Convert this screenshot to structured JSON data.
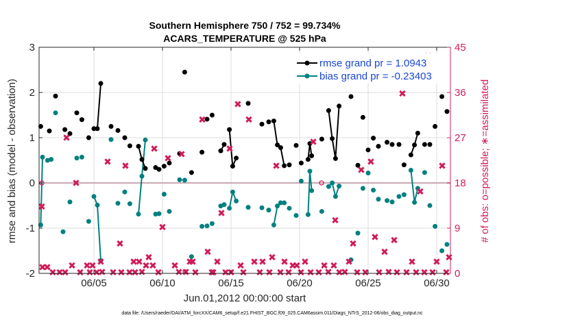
{
  "title_line1": "Southern Hemisphere 750 / 752 = 99.734%",
  "title_line2": "ACARS_TEMPERATURE @ 525 hPa",
  "xlabel": "Jun.01,2012 00:00:00 start",
  "ylabel_left": "rmse and bias (model - observation)",
  "ylabel_right": "# of obs: o=possible; ∗=assimilated",
  "footer": "data file: /Users/raeder/DAI/ATM_forcXX/CAM6_setup/f.e21.FHIST_BGC.f09_025.CAM6assim.011/Diags_NTrS_2012-06/obs_diag_output.nc",
  "colors": {
    "rmse": "#000000",
    "bias": "#008080",
    "obs": "#d01c58",
    "zero": "#c8a8b0",
    "grid": "#dcdcdc",
    "legend_text": "#1a46d6"
  },
  "chart_data": {
    "type": "line",
    "x_axis": {
      "unit": "day of June 2012",
      "range": [
        1,
        31
      ],
      "ticks": [
        5,
        10,
        15,
        20,
        25,
        30
      ],
      "tick_labels": [
        "06/05",
        "06/10",
        "06/15",
        "06/20",
        "06/25",
        "06/30"
      ]
    },
    "y_left": {
      "range": [
        -2,
        3
      ],
      "ticks": [
        -2,
        -1,
        0,
        1,
        2,
        3
      ],
      "tick_labels": [
        "-2",
        "-1",
        "0",
        "1",
        "2",
        "3"
      ]
    },
    "y_right": {
      "range": [
        0,
        45
      ],
      "ticks": [
        0,
        9,
        18,
        27,
        36,
        45
      ],
      "tick_labels": [
        "0",
        "9",
        "18",
        "27",
        "36",
        "45"
      ]
    },
    "grid": true,
    "legend_position": "top-right",
    "series": [
      {
        "name": "rmse grand pr = 1.0943",
        "style": "line-dot",
        "x": [
          1.12,
          1.75,
          2.2,
          2.88,
          3.25,
          3.75,
          4.12,
          4.62,
          5.0,
          5.25,
          5.5,
          6.25,
          6.75,
          7.25,
          7.62,
          8.25,
          8.5,
          8.75,
          9.5,
          9.75,
          10.12,
          10.5,
          11.25,
          11.62,
          12.12,
          12.88,
          13.25,
          13.62,
          14.25,
          14.5,
          14.88,
          15.12,
          15.38,
          16.25,
          17.25,
          17.75,
          18.12,
          18.38,
          18.62,
          18.88,
          19.25,
          19.75,
          20.12,
          20.62,
          20.75,
          20.88,
          21.62,
          22.12,
          22.38,
          22.62,
          22.88,
          23.75,
          24.25,
          24.62,
          25.0,
          25.38,
          25.75,
          26.38,
          26.75,
          27.25,
          27.62,
          28.12,
          28.38,
          28.62,
          29.12,
          29.5,
          29.88,
          30.38,
          30.75
        ],
        "values": [
          1.25,
          1.15,
          1.92,
          1.18,
          1.09,
          1.55,
          1.4,
          1.0,
          1.2,
          1.2,
          2.2,
          1.25,
          1.16,
          1.0,
          0.82,
          0.81,
          0.52,
          0.32,
          0.34,
          0.3,
          0.37,
          0.44,
          0.65,
          2.45,
          0.23,
          0.68,
          1.41,
          1.5,
          0.71,
          0.85,
          1.18,
          0.37,
          0.55,
          1.76,
          1.3,
          1.35,
          1.37,
          0.84,
          0.78,
          0.38,
          0.4,
          0.83,
          0.44,
          0.52,
          0.87,
          0.6,
          0.97,
          1.6,
          0.98,
          0.54,
          1.7,
          1.91,
          0.39,
          1.45,
          0.73,
          0.99,
          0.81,
          0.9,
          0.85,
          0.85,
          0.4,
          0.62,
          0.84,
          1.1,
          0.85,
          0.85,
          1.25,
          1.91,
          1.58
        ]
      },
      {
        "name": "bias grand pr = -0.23403",
        "style": "line-dot",
        "x": [
          1.12,
          1.25,
          1.62,
          1.88,
          2.2,
          2.75,
          3.25,
          3.75,
          4.12,
          4.62,
          5.0,
          5.25,
          5.5,
          6.25,
          6.75,
          7.25,
          7.62,
          8.25,
          8.5,
          8.75,
          9.5,
          9.75,
          10.12,
          10.5,
          11.25,
          11.62,
          12.12,
          12.88,
          13.25,
          13.62,
          14.25,
          14.5,
          14.88,
          15.12,
          15.38,
          16.25,
          17.25,
          17.75,
          18.12,
          18.38,
          18.62,
          18.88,
          19.25,
          19.75,
          20.12,
          20.62,
          20.75,
          20.88,
          21.62,
          22.12,
          22.38,
          22.62,
          22.88,
          23.75,
          24.25,
          24.62,
          25.0,
          25.38,
          25.75,
          26.38,
          26.75,
          27.25,
          27.62,
          28.12,
          28.38,
          28.62,
          29.12,
          29.5,
          29.88,
          30.38,
          30.75
        ],
        "values": [
          -0.93,
          0.57,
          0.5,
          0.52,
          1.55,
          -1.08,
          -0.42,
          0.55,
          0.57,
          -0.85,
          -0.3,
          -0.49,
          -1.72,
          0.96,
          -0.45,
          -0.2,
          -0.46,
          -0.69,
          0.15,
          0.95,
          -0.69,
          -0.68,
          -0.25,
          -0.63,
          0.07,
          0.06,
          -1.63,
          -0.96,
          -0.95,
          -0.9,
          -0.51,
          -0.48,
          -0.56,
          -0.2,
          -0.4,
          -0.54,
          -0.55,
          -0.6,
          -0.93,
          -0.51,
          -0.44,
          -0.44,
          -0.56,
          -0.72,
          0.04,
          -0.7,
          0.26,
          -0.17,
          -0.63,
          -0.08,
          0.0,
          -0.3,
          -0.07,
          -1.7,
          -1.11,
          -0.12,
          0.22,
          -0.16,
          -0.36,
          -0.39,
          -0.42,
          -0.3,
          -0.26,
          0.28,
          -0.43,
          -0.12,
          0.23,
          -0.5,
          -0.96,
          -1.5,
          -1.36
        ]
      },
      {
        "name": "# of obs possible",
        "style": "marker-o",
        "x": [
          1.2,
          11.65,
          21.6
        ],
        "values": [
          18,
          0.3,
          18
        ]
      },
      {
        "name": "# of obs assimilated",
        "style": "marker-x",
        "x": [
          1.2,
          1.25,
          1.6,
          2.0,
          2.5,
          2.9,
          3.0,
          3.4,
          3.7,
          4.0,
          4.5,
          4.7,
          4.9,
          5.2,
          5.5,
          5.6,
          6.0,
          6.4,
          6.9,
          7.0,
          7.3,
          7.6,
          7.9,
          8.0,
          8.3,
          8.5,
          8.8,
          9.0,
          9.3,
          9.4,
          9.7,
          10.0,
          10.4,
          10.9,
          11.2,
          11.4,
          11.7,
          12.0,
          12.2,
          12.4,
          12.9,
          13.3,
          13.6,
          13.7,
          14.0,
          14.3,
          14.6,
          14.9,
          15.0,
          15.5,
          15.7,
          15.9,
          16.3,
          16.7,
          17.1,
          17.3,
          17.8,
          18.0,
          18.3,
          18.6,
          18.9,
          19.2,
          19.5,
          19.8,
          20.1,
          20.4,
          20.8,
          21.0,
          21.4,
          21.8,
          22.1,
          22.5,
          22.6,
          22.9,
          23.3,
          23.6,
          23.9,
          24.2,
          24.5,
          24.8,
          25.2,
          25.5,
          25.8,
          26.2,
          26.5,
          26.9,
          27.1,
          27.5,
          27.8,
          28.2,
          28.5,
          28.8,
          29.1,
          29.4,
          29.7,
          30.0,
          30.4,
          30.7,
          30.9
        ],
        "values": [
          13.3,
          1.2,
          1.2,
          0.2,
          0.2,
          0.2,
          27,
          1.6,
          18,
          0.2,
          1.6,
          0.2,
          1.6,
          0.2,
          2.3,
          0.3,
          22.2,
          0.2,
          5.9,
          0.2,
          21.4,
          0.2,
          2.3,
          0.2,
          2.3,
          0.3,
          1.6,
          3.2,
          1.6,
          24.8,
          0.2,
          9.2,
          22.9,
          1.6,
          0.3,
          23.7,
          0.3,
          2.3,
          2.3,
          0.2,
          30.6,
          4.3,
          0.2,
          0.2,
          2.3,
          12,
          0.2,
          24.8,
          0.2,
          33.7,
          1.6,
          0.2,
          30.6,
          2.3,
          0.2,
          2.3,
          0.2,
          3.2,
          21.4,
          0.2,
          2.3,
          0.2,
          1.6,
          1.6,
          0.2,
          2.3,
          0.2,
          26.2,
          0.2,
          1.6,
          0.3,
          1.6,
          10.6,
          0.2,
          0.3,
          2.3,
          5.9,
          0.2,
          20.6,
          0.2,
          22.2,
          7.2,
          0.2,
          4.3,
          0.3,
          6.6,
          0.2,
          35.8,
          0.2,
          2.3,
          0.2,
          16.3,
          0.2,
          43.2,
          0.2,
          2.3,
          21.4,
          0.2,
          3.2
        ]
      }
    ]
  }
}
